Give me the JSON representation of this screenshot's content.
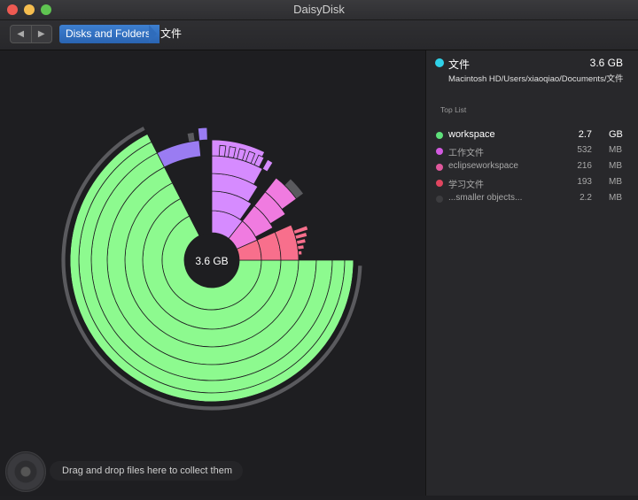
{
  "app": {
    "title": "DaisyDisk"
  },
  "toolbar": {
    "back_glyph": "◀",
    "forward_glyph": "▶",
    "breadcrumb": [
      "Disks and Folders",
      "文件"
    ]
  },
  "chart": {
    "center_label": "3.6 GB"
  },
  "sidebar": {
    "selected": {
      "name": "文件",
      "size": "3.6 GB",
      "path": "Macintosh HD/Users/xiaoqiao/Documents/文件",
      "color": "#2fd1e8"
    },
    "top_list_label": "Top List",
    "items": [
      {
        "name": "workspace",
        "num": "2.7",
        "unit": "GB",
        "color": "#5ee07a",
        "highlight": true
      },
      {
        "name": "工作文件",
        "num": "532",
        "unit": "MB",
        "color": "#d35ae0",
        "highlight": false
      },
      {
        "name": "eclipseworkspace",
        "num": "216",
        "unit": "MB",
        "color": "#e0589c",
        "highlight": false
      },
      {
        "name": "学习文件",
        "num": "193",
        "unit": "MB",
        "color": "#e0455f",
        "highlight": false
      },
      {
        "name": "...smaller objects...",
        "num": "2.2",
        "unit": "MB",
        "color": "#3c3c3f",
        "highlight": false
      }
    ]
  },
  "dropzone": {
    "text": "Drag and drop files here to collect them"
  },
  "colors": {
    "workspace": "#8dfa8f",
    "work_files": "#d68bff",
    "eclipse": "#f07be0",
    "study": "#f86f8c",
    "small": "#5a5a5e"
  }
}
